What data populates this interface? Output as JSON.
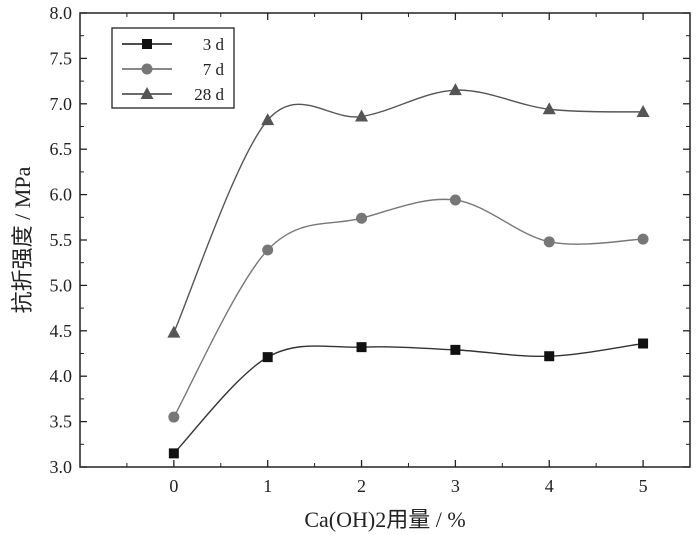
{
  "chart_data": {
    "type": "line",
    "title": "",
    "xlabel": "Ca(OH)2用量 / %",
    "ylabel": "抗折强度 / MPa",
    "x": [
      0,
      1,
      2,
      3,
      4,
      5
    ],
    "x_ticks": [
      "0",
      "1",
      "2",
      "3",
      "4",
      "5"
    ],
    "xlim": [
      -1,
      5.5
    ],
    "ylim": [
      3.0,
      8.0
    ],
    "y_ticks": [
      "3.0",
      "3.5",
      "4.0",
      "4.5",
      "5.0",
      "5.5",
      "6.0",
      "6.5",
      "7.0",
      "7.5",
      "8.0"
    ],
    "grid": false,
    "legend_position": "top-left",
    "series": [
      {
        "name": "3 d",
        "marker": "square",
        "color": "#111111",
        "line_color": "#333333",
        "values": [
          3.15,
          4.21,
          4.32,
          4.29,
          4.22,
          4.36
        ]
      },
      {
        "name": "7 d",
        "marker": "circle",
        "color": "#777777",
        "line_color": "#777777",
        "values": [
          3.55,
          5.39,
          5.74,
          5.94,
          5.48,
          5.51
        ]
      },
      {
        "name": "28 d",
        "marker": "triangle",
        "color": "#555555",
        "line_color": "#555555",
        "values": [
          4.48,
          6.82,
          6.86,
          7.15,
          6.94,
          6.91
        ]
      }
    ]
  }
}
